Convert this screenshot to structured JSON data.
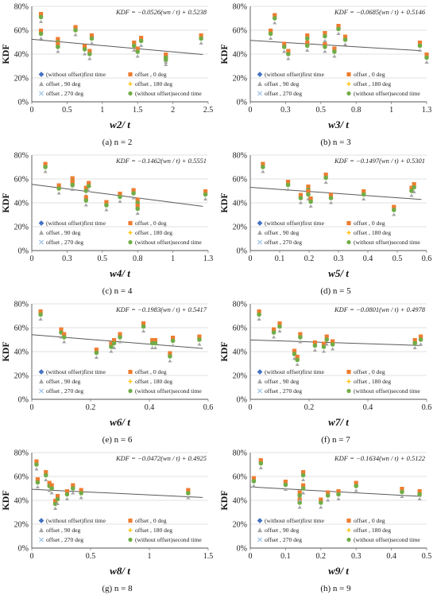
{
  "colors": {
    "first_time": "#4472c4",
    "deg0": "#ed7d31",
    "deg90": "#a5a5a5",
    "deg180": "#ffc000",
    "deg270": "#9dc3e6",
    "second_time": "#70ad47",
    "trend": "#595959"
  },
  "chart_data": [
    {
      "type": "scatter",
      "caption": "(a) n = 2",
      "ylabel": "KDF",
      "xlabel": "w2/ t",
      "equation": "KDF = −0.0526(wn / t) + 0.5238",
      "trend": {
        "slope": -0.0526,
        "intercept": 0.5238
      },
      "xlim": [
        0,
        2.5
      ],
      "ylim": [
        0,
        0.8
      ],
      "xticks": [
        "0",
        "0.5",
        "1",
        "1.5",
        "2",
        "2.5"
      ],
      "yticks": [
        "0%",
        "20%",
        "40%",
        "60%",
        "80%"
      ],
      "legend": [
        "(without offset)first time",
        "offset , 0 deg",
        "offset , 90 deg",
        "offset , 180 deg",
        "offset , 270 deg",
        "(without offset)second time"
      ],
      "points_x": [
        0.13,
        0.13,
        0.37,
        0.37,
        0.62,
        0.75,
        0.82,
        0.85,
        1.45,
        1.5,
        1.55,
        1.9,
        1.9,
        2.4
      ],
      "points_y": [
        0.71,
        0.57,
        0.5,
        0.46,
        0.6,
        0.44,
        0.4,
        0.53,
        0.47,
        0.42,
        0.51,
        0.35,
        0.37,
        0.53
      ]
    },
    {
      "type": "scatter",
      "caption": "(b) n = 3",
      "ylabel": "KDF",
      "xlabel": "w3/ t",
      "equation": "KDF = −0.0685(wn / t) + 0.5146",
      "trend": {
        "slope": -0.0685,
        "intercept": 0.5146
      },
      "xlim": [
        0,
        1.3
      ],
      "ylim": [
        0,
        0.8
      ],
      "xticks": [
        "0",
        "0.3",
        "0.5",
        "0.8",
        "1",
        "1.3"
      ],
      "yticks": [
        "0%",
        "20%",
        "40%",
        "60%",
        "80%"
      ],
      "legend": [
        "(without offset)first time",
        "offset , 0 deg",
        "offset , 90 deg",
        "offset , 180 deg",
        "offset , 270 deg",
        "(without offset)second time"
      ],
      "points_x": [
        0.15,
        0.18,
        0.25,
        0.28,
        0.42,
        0.42,
        0.55,
        0.55,
        0.62,
        0.65,
        0.7,
        1.25,
        1.3
      ],
      "points_y": [
        0.57,
        0.7,
        0.46,
        0.4,
        0.53,
        0.47,
        0.46,
        0.55,
        0.42,
        0.61,
        0.52,
        0.47,
        0.37
      ]
    },
    {
      "type": "scatter",
      "caption": "(c) n = 4",
      "ylabel": "KDF",
      "xlabel": "w4/ t",
      "equation": "KDF = −0.1462(wn / t) + 0.5551",
      "trend": {
        "slope": -0.1462,
        "intercept": 0.5551
      },
      "xlim": [
        0,
        1.3
      ],
      "ylim": [
        0,
        0.8
      ],
      "xticks": [
        "0",
        "0.3",
        "0.5",
        "0.8",
        "1",
        "1.3"
      ],
      "yticks": [
        "0%",
        "20%",
        "40%",
        "60%",
        "80%"
      ],
      "legend": [
        "(without offset)first time",
        "offset , 0 deg",
        "offset , 90 deg",
        "offset , 180 deg",
        "offset , 270 deg",
        "(without offset)second time"
      ],
      "points_x": [
        0.1,
        0.2,
        0.3,
        0.3,
        0.4,
        0.4,
        0.42,
        0.55,
        0.65,
        0.75,
        0.78,
        0.78,
        1.28
      ],
      "points_y": [
        0.7,
        0.52,
        0.58,
        0.55,
        0.5,
        0.42,
        0.54,
        0.38,
        0.45,
        0.48,
        0.4,
        0.35,
        0.47
      ]
    },
    {
      "type": "scatter",
      "caption": "(d) n = 5",
      "ylabel": "KDF",
      "xlabel": "w5/ t",
      "equation": "KDF = −0.1497(wn / t) + 0.5301",
      "trend": {
        "slope": -0.1497,
        "intercept": 0.5301
      },
      "xlim": [
        0,
        0.7
      ],
      "ylim": [
        0,
        0.8
      ],
      "xticks": [
        "0",
        "0.1",
        "0.2",
        "0.3",
        "0.4",
        "0.5",
        "0.6"
      ],
      "yticks": [
        "0%",
        "20%",
        "40%",
        "60%",
        "80%"
      ],
      "legend": [
        "(without offset)first time",
        "offset , 0 deg",
        "offset , 90 deg",
        "offset , 180 deg",
        "offset , 270 deg",
        "(without offset)second time"
      ],
      "points_x": [
        0.05,
        0.15,
        0.2,
        0.23,
        0.23,
        0.24,
        0.3,
        0.32,
        0.45,
        0.57,
        0.64,
        0.65
      ],
      "points_y": [
        0.7,
        0.55,
        0.44,
        0.51,
        0.47,
        0.41,
        0.61,
        0.44,
        0.47,
        0.34,
        0.5,
        0.53
      ]
    },
    {
      "type": "scatter",
      "caption": "(e) n = 6",
      "ylabel": "KDF",
      "xlabel": "w6/ t",
      "equation": "KDF = −0.1983(wn / t) + 0.5417",
      "trend": {
        "slope": -0.1983,
        "intercept": 0.5417
      },
      "xlim": [
        0,
        0.6
      ],
      "ylim": [
        0,
        0.8
      ],
      "xticks": [
        "0",
        "0.2",
        "0.4",
        "0.6"
      ],
      "yticks": [
        "0%",
        "20%",
        "40%",
        "60%",
        "80%"
      ],
      "legend": [
        "(without offset)first time",
        "offset , 0 deg",
        "offset , 90 deg",
        "offset , 180 deg",
        "offset , 270 deg",
        "(without offset)second time"
      ],
      "points_x": [
        0.03,
        0.1,
        0.11,
        0.22,
        0.27,
        0.28,
        0.3,
        0.38,
        0.41,
        0.42,
        0.47,
        0.48,
        0.57
      ],
      "points_y": [
        0.71,
        0.56,
        0.52,
        0.39,
        0.44,
        0.47,
        0.52,
        0.61,
        0.47,
        0.47,
        0.36,
        0.49,
        0.5
      ]
    },
    {
      "type": "scatter",
      "caption": "(f) n = 7",
      "ylabel": "KDF",
      "xlabel": "w7/ t",
      "equation": "KDF = −0.0801(wn / t) + 0.4978",
      "trend": {
        "slope": -0.0801,
        "intercept": 0.4978
      },
      "xlim": [
        0,
        0.6
      ],
      "ylim": [
        0,
        0.8
      ],
      "xticks": [
        "0",
        "0.2",
        "0.4",
        "0.6"
      ],
      "yticks": [
        "0%",
        "20%",
        "40%",
        "60%",
        "80%"
      ],
      "legend": [
        "(without offset)first time",
        "offset , 0 deg",
        "offset , 90 deg",
        "offset , 180 deg",
        "offset , 270 deg",
        "(without offset)second time"
      ],
      "points_x": [
        0.03,
        0.08,
        0.1,
        0.15,
        0.16,
        0.17,
        0.22,
        0.25,
        0.26,
        0.28,
        0.56,
        0.58
      ],
      "points_y": [
        0.71,
        0.56,
        0.61,
        0.38,
        0.33,
        0.52,
        0.45,
        0.44,
        0.5,
        0.46,
        0.47,
        0.5
      ]
    },
    {
      "type": "scatter",
      "caption": "(g) n = 8",
      "ylabel": "KDF",
      "xlabel": "w8/ t",
      "equation": "KDF = −0.0472(wn / t) + 0.4925",
      "trend": {
        "slope": -0.0472,
        "intercept": 0.4925
      },
      "xlim": [
        0,
        1.5
      ],
      "ylim": [
        0,
        0.8
      ],
      "xticks": [
        "0",
        "0.5",
        "1",
        "1.5"
      ],
      "yticks": [
        "0%",
        "20%",
        "40%",
        "60%",
        "80%"
      ],
      "legend": [
        "(without offset)first time",
        "offset , 0 deg",
        "offset , 90 deg",
        "offset , 180 deg",
        "offset , 270 deg",
        "(without offset)second time"
      ],
      "points_x": [
        0.04,
        0.05,
        0.12,
        0.15,
        0.17,
        0.2,
        0.22,
        0.3,
        0.35,
        0.42,
        1.33
      ],
      "points_y": [
        0.7,
        0.55,
        0.61,
        0.52,
        0.5,
        0.37,
        0.41,
        0.45,
        0.5,
        0.46,
        0.46
      ]
    },
    {
      "type": "scatter",
      "caption": "(h) n = 9",
      "ylabel": "KDF",
      "xlabel": "w9/ t",
      "equation": "KDF = −0.1634(wn / t) + 0.5122",
      "trend": {
        "slope": -0.1634,
        "intercept": 0.5122
      },
      "xlim": [
        0,
        0.5
      ],
      "ylim": [
        0,
        0.8
      ],
      "xticks": [
        "0",
        "0.1",
        "0.2",
        "0.3",
        "0.4",
        "0.5"
      ],
      "yticks": [
        "0%",
        "20%",
        "40%",
        "60%",
        "80%"
      ],
      "legend": [
        "(without offset)first time",
        "offset , 0 deg",
        "offset , 90 deg",
        "offset , 180 deg",
        "offset , 270 deg",
        "(without offset)second time"
      ],
      "points_x": [
        0.01,
        0.03,
        0.1,
        0.14,
        0.14,
        0.15,
        0.15,
        0.2,
        0.22,
        0.25,
        0.3,
        0.43,
        0.48
      ],
      "points_y": [
        0.56,
        0.71,
        0.53,
        0.38,
        0.44,
        0.61,
        0.5,
        0.38,
        0.44,
        0.45,
        0.52,
        0.47,
        0.45
      ]
    }
  ]
}
